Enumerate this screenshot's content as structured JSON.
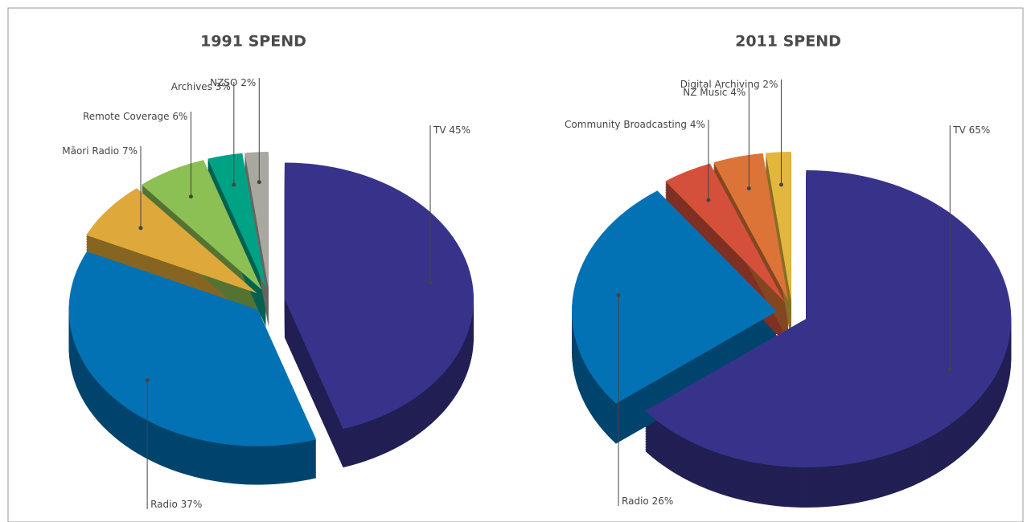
{
  "chart_data": [
    {
      "type": "pie",
      "title": "1991 SPEND",
      "categories": [
        "TV",
        "Radio",
        "Māori Radio",
        "Remote Coverage",
        "Archives",
        "NZSO"
      ],
      "values": [
        45,
        37,
        7,
        6,
        3,
        2
      ],
      "value_labels": [
        "45%",
        "37%",
        "7%",
        "6%",
        "3%",
        "2%"
      ],
      "colors": [
        "#37338b",
        "#0272b5",
        "#dfa83a",
        "#8cbf54",
        "#00a286",
        "#a8a8a0"
      ]
    },
    {
      "type": "pie",
      "title": "2011 SPEND",
      "categories": [
        "TV",
        "Radio",
        "Community Broadcasting",
        "NZ Music",
        "Digital Archiving"
      ],
      "values": [
        65,
        26,
        4,
        4,
        2
      ],
      "value_labels": [
        "65%",
        "26%",
        "4%",
        "4%",
        "2%"
      ],
      "colors": [
        "#37338b",
        "#0272b5",
        "#d4503a",
        "#dc7437",
        "#e2b73e"
      ]
    }
  ]
}
